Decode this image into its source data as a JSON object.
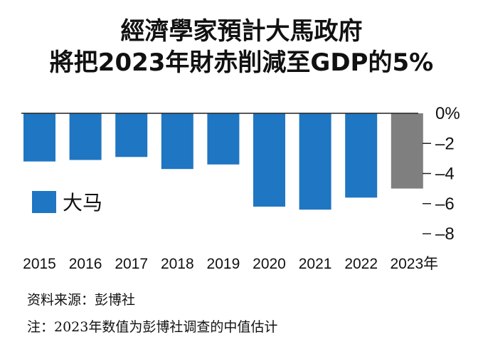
{
  "header": {
    "title_line1": "經濟學家預計大馬政府",
    "title_line2": "將把2023年財赤削減至GDP的5%"
  },
  "chart_data": {
    "type": "bar",
    "title": "經濟學家預計大馬政府將把2023年財赤削減至GDP的5%",
    "categories": [
      "2015",
      "2016",
      "2017",
      "2018",
      "2019",
      "2020",
      "2021",
      "2022",
      "2023年"
    ],
    "series": [
      {
        "name": "大马",
        "values": [
          -3.2,
          -3.1,
          -2.9,
          -3.7,
          -3.4,
          -6.2,
          -6.4,
          -5.6,
          -5.0
        ],
        "colors": [
          "#1f76c2",
          "#1f76c2",
          "#1f76c2",
          "#1f76c2",
          "#1f76c2",
          "#1f76c2",
          "#1f76c2",
          "#1f76c2",
          "#7f7f7f"
        ]
      }
    ],
    "estimated_index": 8,
    "ylim": [
      -8,
      0
    ],
    "yticks": [
      0,
      -2,
      -4,
      -6,
      -8
    ],
    "ytick_labels": [
      "0%",
      "–2",
      "–4",
      "–6",
      "–8"
    ],
    "xlabel": "",
    "ylabel": "",
    "legend": {
      "label": "大马",
      "color": "#1f76c2",
      "position": "left"
    },
    "bar_color": "#1f76c2",
    "estimate_color": "#7f7f7f",
    "axis_color": "#222222"
  },
  "footer": {
    "source": "资料来源：彭博社",
    "note": "注：2023年数值为彭博社调查的中值估计"
  }
}
